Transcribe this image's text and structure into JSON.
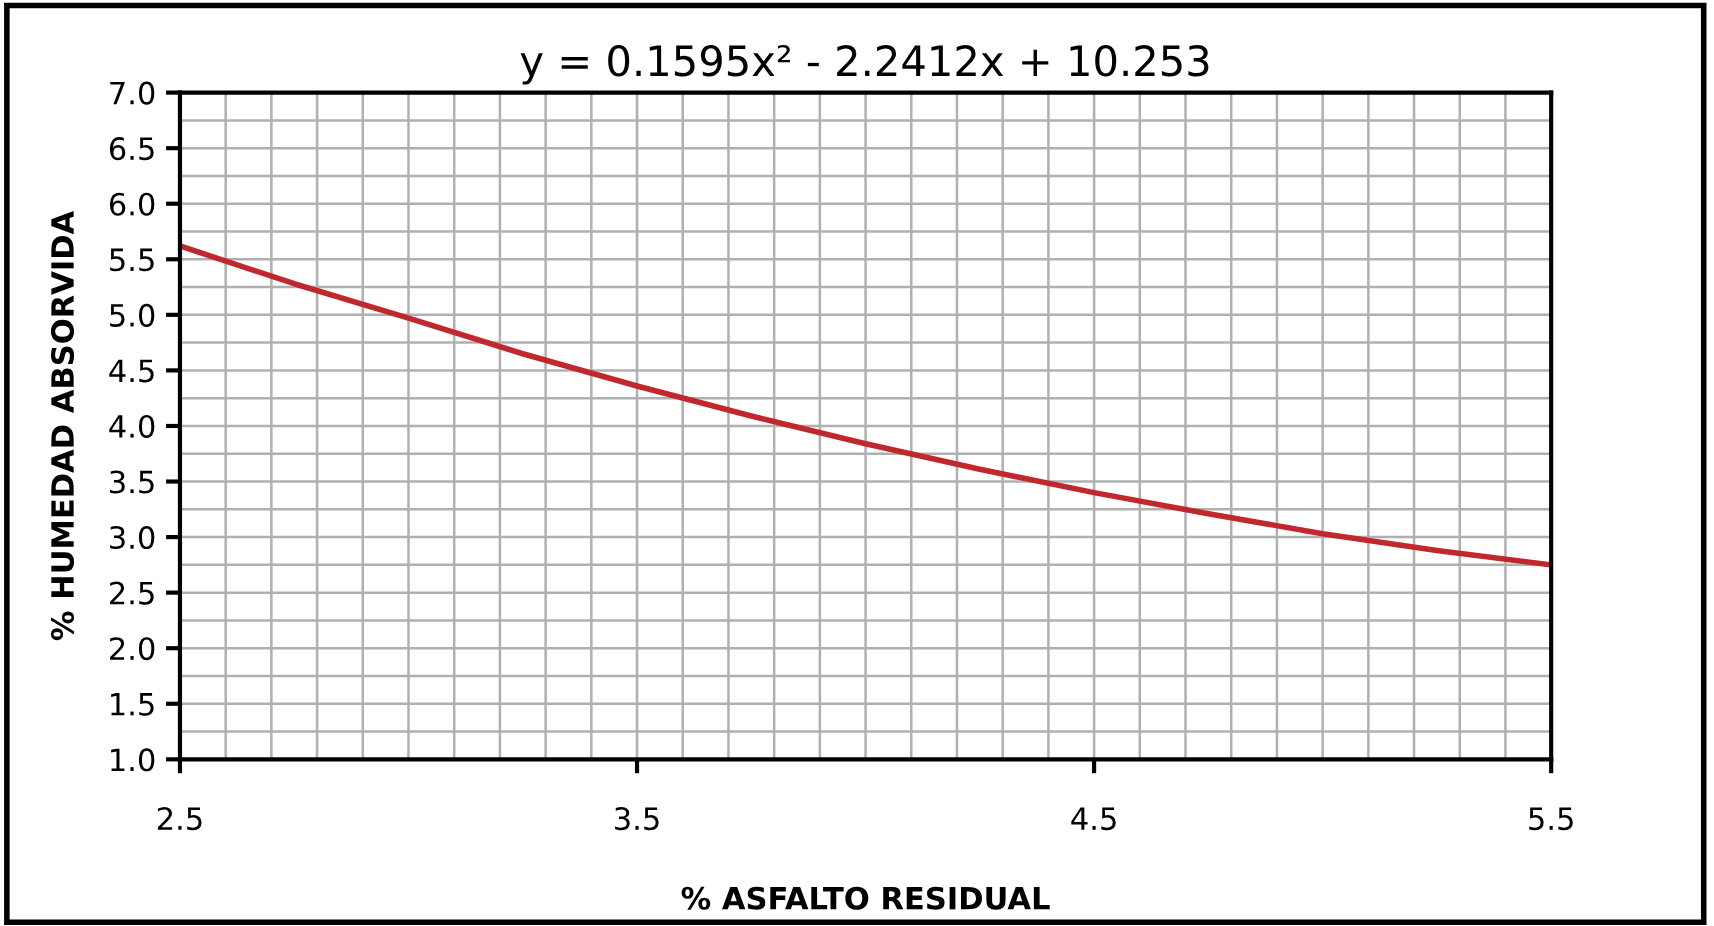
{
  "chart_data": {
    "type": "line",
    "title": "y = 0.1595x² - 2.2412x + 10.253",
    "xlabel": "% ASFALTO RESIDUAL",
    "ylabel": "% HUMEDAD ABSORVIDA",
    "x": [
      2.5,
      2.75,
      3.0,
      3.25,
      3.5,
      3.75,
      4.0,
      4.25,
      4.5,
      4.75,
      5.0,
      5.25,
      5.5
    ],
    "series": [
      {
        "color": "#c0282d",
        "values": [
          5.62,
          5.28,
          4.97,
          4.65,
          4.36,
          4.09,
          3.84,
          3.61,
          3.4,
          3.21,
          3.03,
          2.88,
          2.75
        ]
      }
    ],
    "xlim": [
      2.5,
      5.5
    ],
    "xticks": [
      2.5,
      {
        "value": 2.6,
        "label": null
      },
      {
        "value": 2.7,
        "label": null
      },
      {
        "value": 2.8,
        "label": null
      },
      {
        "value": 2.9,
        "label": null
      },
      {
        "value": 3.0,
        "label": null
      },
      {
        "value": 3.1,
        "label": null
      },
      {
        "value": 3.2,
        "label": null
      },
      {
        "value": 3.3,
        "label": null
      },
      {
        "value": 3.4,
        "label": null
      },
      3.5,
      {
        "value": 3.6,
        "label": null
      },
      {
        "value": 3.7,
        "label": null
      },
      {
        "value": 3.8,
        "label": null
      },
      {
        "value": 3.9,
        "label": null
      },
      {
        "value": 4.0,
        "label": null
      },
      {
        "value": 4.1,
        "label": null
      },
      {
        "value": 4.2,
        "label": null
      },
      {
        "value": 4.3,
        "label": null
      },
      {
        "value": 4.4,
        "label": null
      },
      4.5,
      {
        "value": 4.6,
        "label": null
      },
      {
        "value": 4.7,
        "label": null
      },
      {
        "value": 4.8,
        "label": null
      },
      {
        "value": 4.9,
        "label": null
      },
      {
        "value": 5.0,
        "label": null
      },
      {
        "value": 5.1,
        "label": null
      },
      {
        "value": 5.2,
        "label": null
      },
      {
        "value": 5.3,
        "label": null
      },
      {
        "value": 5.4,
        "label": null
      },
      5.5
    ],
    "ylim": [
      1.0,
      7.0
    ],
    "yticks": [
      {
        "value": 1.0,
        "label": "1.0"
      },
      {
        "value": 1.25,
        "label": null
      },
      1.5,
      {
        "value": 1.75,
        "label": null
      },
      {
        "value": 2.0,
        "label": "2.0"
      },
      {
        "value": 2.25,
        "label": null
      },
      2.5,
      {
        "value": 2.75,
        "label": null
      },
      {
        "value": 3.0,
        "label": "3.0"
      },
      {
        "value": 3.25,
        "label": null
      },
      3.5,
      {
        "value": 3.75,
        "label": null
      },
      {
        "value": 4.0,
        "label": "4.0"
      },
      {
        "value": 4.25,
        "label": null
      },
      4.5,
      {
        "value": 4.75,
        "label": null
      },
      {
        "value": 5.0,
        "label": "5.0"
      },
      {
        "value": 5.25,
        "label": null
      },
      5.5,
      {
        "value": 5.75,
        "label": null
      },
      {
        "value": 6.0,
        "label": "6.0"
      },
      {
        "value": 6.25,
        "label": null
      },
      6.5,
      {
        "value": 6.75,
        "label": null
      },
      {
        "value": 7.0,
        "label": "7.0"
      }
    ],
    "grid": true,
    "marker": "none",
    "line_style": "solid",
    "legend": false
  }
}
